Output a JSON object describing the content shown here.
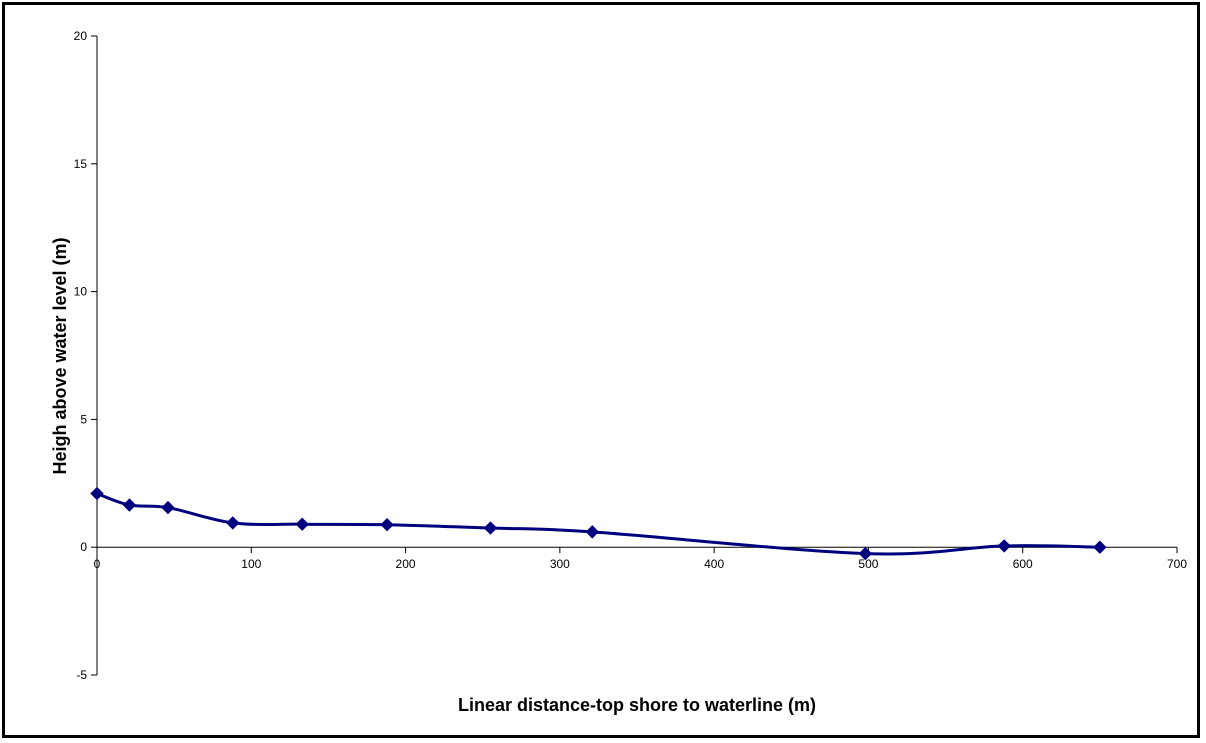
{
  "chart_data": {
    "type": "line",
    "title": "",
    "xlabel": "Linear distance-top shore to waterline (m)",
    "ylabel": "Heigh above water level (m)",
    "xlim": [
      0,
      700
    ],
    "ylim": [
      -5,
      20
    ],
    "x_ticks": [
      0,
      100,
      200,
      300,
      400,
      500,
      600,
      700
    ],
    "y_ticks": [
      -5,
      0,
      5,
      10,
      15,
      20
    ],
    "x_tick_labels": [
      "0",
      "100",
      "200",
      "300",
      "400",
      "500",
      "600",
      "700"
    ],
    "y_tick_labels": [
      "-5",
      "0",
      "5",
      "10",
      "15",
      "20"
    ],
    "grid": false,
    "legend": "none",
    "line_color": "#00007f",
    "marker": "diamond",
    "series": [
      {
        "x": [
          0,
          21,
          46,
          88,
          133,
          188,
          255,
          321,
          498,
          588,
          650
        ],
        "y": [
          2.1,
          1.65,
          1.55,
          0.95,
          0.9,
          0.88,
          0.75,
          0.6,
          -0.25,
          0.05,
          0.0
        ]
      }
    ]
  }
}
